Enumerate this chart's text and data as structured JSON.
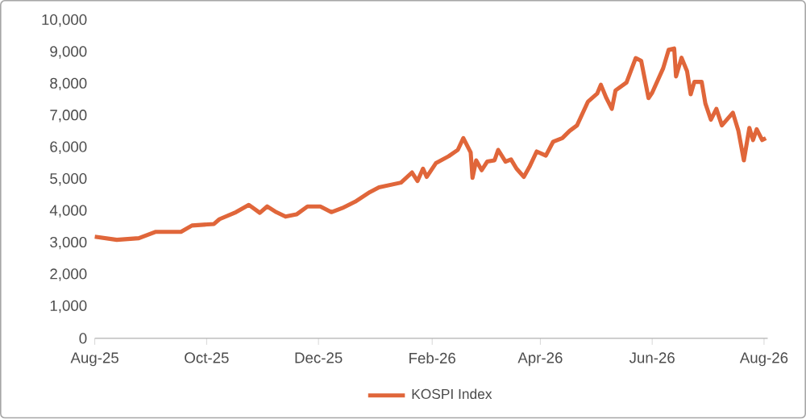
{
  "chart_data": {
    "type": "line",
    "x": [
      "2025-08-01",
      "2025-08-13",
      "2025-08-25",
      "2025-09-03",
      "2025-09-17",
      "2025-09-23",
      "2025-10-05",
      "2025-10-08",
      "2025-10-17",
      "2025-10-24",
      "2025-10-30",
      "2025-11-03",
      "2025-11-08",
      "2025-11-13",
      "2025-11-19",
      "2025-11-25",
      "2025-12-02",
      "2025-12-08",
      "2025-12-14",
      "2025-12-21",
      "2025-12-29",
      "2026-01-03",
      "2026-01-15",
      "2026-01-21",
      "2026-01-24",
      "2026-01-27",
      "2026-01-29",
      "2026-02-03",
      "2026-02-10",
      "2026-02-15",
      "2026-02-18",
      "2026-02-22",
      "2026-02-23",
      "2026-02-25",
      "2026-02-28",
      "2026-03-03",
      "2026-03-07",
      "2026-03-09",
      "2026-03-13",
      "2026-03-16",
      "2026-03-19",
      "2026-03-23",
      "2026-03-26",
      "2026-03-30",
      "2026-04-04",
      "2026-04-08",
      "2026-04-13",
      "2026-04-17",
      "2026-04-21",
      "2026-04-27",
      "2026-05-02",
      "2026-05-04",
      "2026-05-07",
      "2026-05-10",
      "2026-05-12",
      "2026-05-18",
      "2026-05-23",
      "2026-05-26",
      "2026-05-30",
      "2026-06-01",
      "2026-06-07",
      "2026-06-10",
      "2026-06-13",
      "2026-06-14",
      "2026-06-17",
      "2026-06-20",
      "2026-06-22",
      "2026-06-24",
      "2026-06-28",
      "2026-06-30",
      "2026-07-03",
      "2026-07-06",
      "2026-07-09",
      "2026-07-15",
      "2026-07-18",
      "2026-07-21",
      "2026-07-24",
      "2026-07-26",
      "2026-07-28",
      "2026-07-31",
      "2026-08-02"
    ],
    "series": [
      {
        "name": "KOSPI Index",
        "color": "#e0663a",
        "values": [
          3200,
          3100,
          3150,
          3350,
          3350,
          3550,
          3600,
          3750,
          3970,
          4200,
          3950,
          4150,
          3970,
          3830,
          3900,
          4150,
          4150,
          3970,
          4100,
          4300,
          4600,
          4750,
          4900,
          5220,
          4950,
          5340,
          5080,
          5510,
          5730,
          5930,
          6300,
          5850,
          5050,
          5600,
          5290,
          5560,
          5600,
          5930,
          5560,
          5630,
          5340,
          5080,
          5390,
          5880,
          5750,
          6190,
          6300,
          6530,
          6700,
          7450,
          7700,
          7980,
          7560,
          7220,
          7800,
          8050,
          8820,
          8730,
          7560,
          7730,
          8500,
          9080,
          9120,
          8240,
          8830,
          8410,
          7680,
          8070,
          8070,
          7390,
          6880,
          7220,
          6700,
          7100,
          6530,
          5600,
          6620,
          6240,
          6580,
          6240,
          6300
        ]
      }
    ],
    "xlim": [
      "2025-08-01",
      "2026-08-03"
    ],
    "xticks": [
      {
        "value": "2025-08-01",
        "label": "Aug-25"
      },
      {
        "value": "2025-10-01",
        "label": "Oct-25"
      },
      {
        "value": "2025-12-01",
        "label": "Dec-25"
      },
      {
        "value": "2026-02-01",
        "label": "Feb-26"
      },
      {
        "value": "2026-04-01",
        "label": "Apr-26"
      },
      {
        "value": "2026-06-01",
        "label": "Jun-26"
      },
      {
        "value": "2026-08-01",
        "label": "Aug-26"
      }
    ],
    "ylim": [
      0,
      10000
    ],
    "yticks": [
      {
        "value": 0,
        "label": "0"
      },
      {
        "value": 1000,
        "label": "1,000"
      },
      {
        "value": 2000,
        "label": "2,000"
      },
      {
        "value": 3000,
        "label": "3,000"
      },
      {
        "value": 4000,
        "label": "4,000"
      },
      {
        "value": 5000,
        "label": "5,000"
      },
      {
        "value": 6000,
        "label": "6,000"
      },
      {
        "value": 7000,
        "label": "7,000"
      },
      {
        "value": 8000,
        "label": "8,000"
      },
      {
        "value": 9000,
        "label": "9,000"
      },
      {
        "value": 10000,
        "label": "10,000"
      }
    ],
    "grid": false,
    "legend": "bottom",
    "line_style": "solid",
    "marker": "none"
  }
}
